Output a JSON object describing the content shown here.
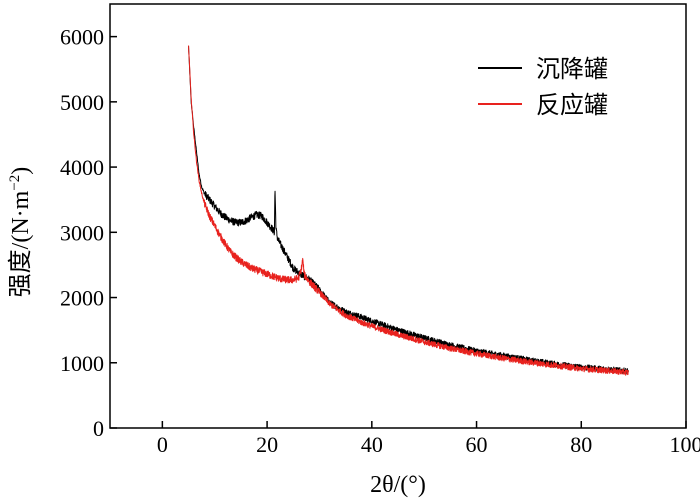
{
  "chart_data": {
    "type": "line",
    "xlabel": "2θ/(°)",
    "ylabel_main": "强度/(N·m",
    "ylabel_sup": "−2",
    "ylabel_close": ")",
    "xlim": [
      -10,
      100
    ],
    "ylim": [
      0,
      6500
    ],
    "xticks": [
      0,
      20,
      40,
      60,
      80,
      100
    ],
    "yticks": [
      0,
      1000,
      2000,
      3000,
      4000,
      5000,
      6000
    ],
    "legend_position": "top-right",
    "grid": false,
    "series": [
      {
        "name": "沉降罐",
        "color": "#000000",
        "points": [
          [
            5.0,
            5850
          ],
          [
            5.5,
            5000
          ],
          [
            6.0,
            4600
          ],
          [
            6.5,
            4250
          ],
          [
            7.0,
            3900
          ],
          [
            7.5,
            3700
          ],
          [
            8.0,
            3600
          ],
          [
            9.0,
            3500
          ],
          [
            10.0,
            3400
          ],
          [
            11.0,
            3300
          ],
          [
            12.0,
            3230
          ],
          [
            13.0,
            3180
          ],
          [
            14.0,
            3150
          ],
          [
            15.0,
            3150
          ],
          [
            16.0,
            3180
          ],
          [
            17.0,
            3230
          ],
          [
            18.0,
            3270
          ],
          [
            19.0,
            3250
          ],
          [
            20.0,
            3150
          ],
          [
            21.0,
            3050
          ],
          [
            21.4,
            3000
          ],
          [
            21.5,
            3700
          ],
          [
            21.7,
            3050
          ],
          [
            22.0,
            2900
          ],
          [
            23.0,
            2750
          ],
          [
            24.0,
            2600
          ],
          [
            25.0,
            2450
          ],
          [
            26.0,
            2380
          ],
          [
            27.0,
            2330
          ],
          [
            28.0,
            2280
          ],
          [
            30.0,
            2120
          ],
          [
            32.0,
            1920
          ],
          [
            35.0,
            1780
          ],
          [
            38.0,
            1700
          ],
          [
            40.0,
            1640
          ],
          [
            45.0,
            1500
          ],
          [
            50.0,
            1380
          ],
          [
            55.0,
            1270
          ],
          [
            60.0,
            1180
          ],
          [
            65.0,
            1110
          ],
          [
            70.0,
            1040
          ],
          [
            75.0,
            980
          ],
          [
            80.0,
            930
          ],
          [
            85.0,
            900
          ],
          [
            89.0,
            870
          ]
        ]
      },
      {
        "name": "反应罐",
        "color": "#e8221e",
        "points": [
          [
            5.0,
            5850
          ],
          [
            5.5,
            5050
          ],
          [
            6.0,
            4500
          ],
          [
            6.5,
            4100
          ],
          [
            7.0,
            3800
          ],
          [
            7.5,
            3600
          ],
          [
            8.0,
            3450
          ],
          [
            9.0,
            3250
          ],
          [
            10.0,
            3100
          ],
          [
            11.0,
            2950
          ],
          [
            12.0,
            2820
          ],
          [
            13.0,
            2700
          ],
          [
            14.0,
            2620
          ],
          [
            15.0,
            2550
          ],
          [
            16.0,
            2500
          ],
          [
            17.0,
            2450
          ],
          [
            18.0,
            2420
          ],
          [
            19.0,
            2390
          ],
          [
            20.0,
            2360
          ],
          [
            21.0,
            2330
          ],
          [
            22.0,
            2300
          ],
          [
            23.0,
            2280
          ],
          [
            24.0,
            2270
          ],
          [
            25.0,
            2270
          ],
          [
            26.0,
            2300
          ],
          [
            26.5,
            2420
          ],
          [
            26.8,
            2580
          ],
          [
            27.1,
            2350
          ],
          [
            28.0,
            2250
          ],
          [
            30.0,
            2080
          ],
          [
            32.0,
            1900
          ],
          [
            35.0,
            1730
          ],
          [
            38.0,
            1620
          ],
          [
            40.0,
            1560
          ],
          [
            45.0,
            1430
          ],
          [
            50.0,
            1320
          ],
          [
            55.0,
            1220
          ],
          [
            60.0,
            1140
          ],
          [
            65.0,
            1070
          ],
          [
            70.0,
            1010
          ],
          [
            75.0,
            960
          ],
          [
            80.0,
            910
          ],
          [
            85.0,
            880
          ],
          [
            89.0,
            850
          ]
        ]
      }
    ]
  }
}
